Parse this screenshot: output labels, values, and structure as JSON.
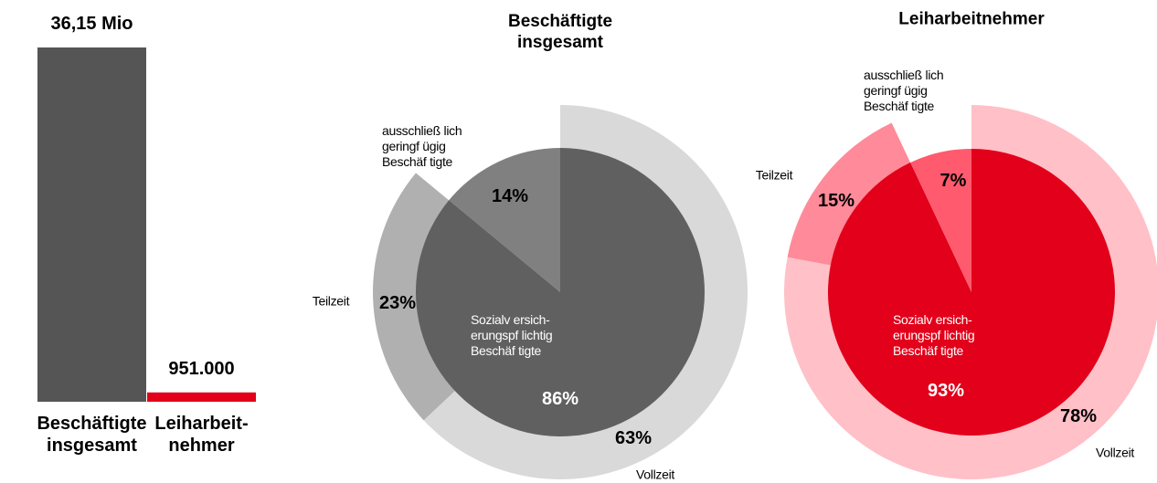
{
  "chart_data": [
    {
      "type": "bar",
      "categories": [
        "Beschäftigte\ninsgesamt",
        "Leiharbeit-\nnehmer"
      ],
      "values": [
        36150000,
        951000
      ],
      "value_labels": [
        "36,15 Mio",
        "951.000"
      ],
      "colors": [
        "#555555",
        "#e2001a"
      ]
    },
    {
      "type": "nested_pie",
      "title": "Beschäftigte\ninsgesamt",
      "inner": {
        "labels": [
          "Sozialv ersich-\nerungspf lichtig\nBeschäf tigte",
          null
        ],
        "values": [
          86,
          14
        ],
        "value_labels": [
          "86%",
          "14%"
        ],
        "colors": [
          "#606060",
          "#808080"
        ]
      },
      "outer": {
        "labels": [
          "Vollzeit",
          "Teilzeit",
          "ausschließ lich\ngeringf ügig\nBeschäf tigte"
        ],
        "values": [
          63,
          23,
          14
        ],
        "value_labels": [
          "63%",
          "23%",
          null
        ],
        "colors": [
          "#d9d9d9",
          "#b0b0b0",
          "#ffffff"
        ]
      }
    },
    {
      "type": "nested_pie",
      "title": "Leiharbeitnehmer",
      "inner": {
        "labels": [
          "Sozialv ersich-\nerungspf lichtig\nBeschäf tigte",
          null
        ],
        "values": [
          93,
          7
        ],
        "value_labels": [
          "93%",
          "7%"
        ],
        "colors": [
          "#e2001a",
          "#ff5a6e"
        ]
      },
      "outer": {
        "labels": [
          "Vollzeit",
          "Teilzeit",
          "ausschließ lich\ngeringf ügig\nBeschäf tigte"
        ],
        "values": [
          78,
          15,
          7
        ],
        "value_labels": [
          "78%",
          "15%",
          null
        ],
        "colors": [
          "#ffc0c8",
          "#ff8a99",
          "#ffffff"
        ]
      }
    }
  ]
}
